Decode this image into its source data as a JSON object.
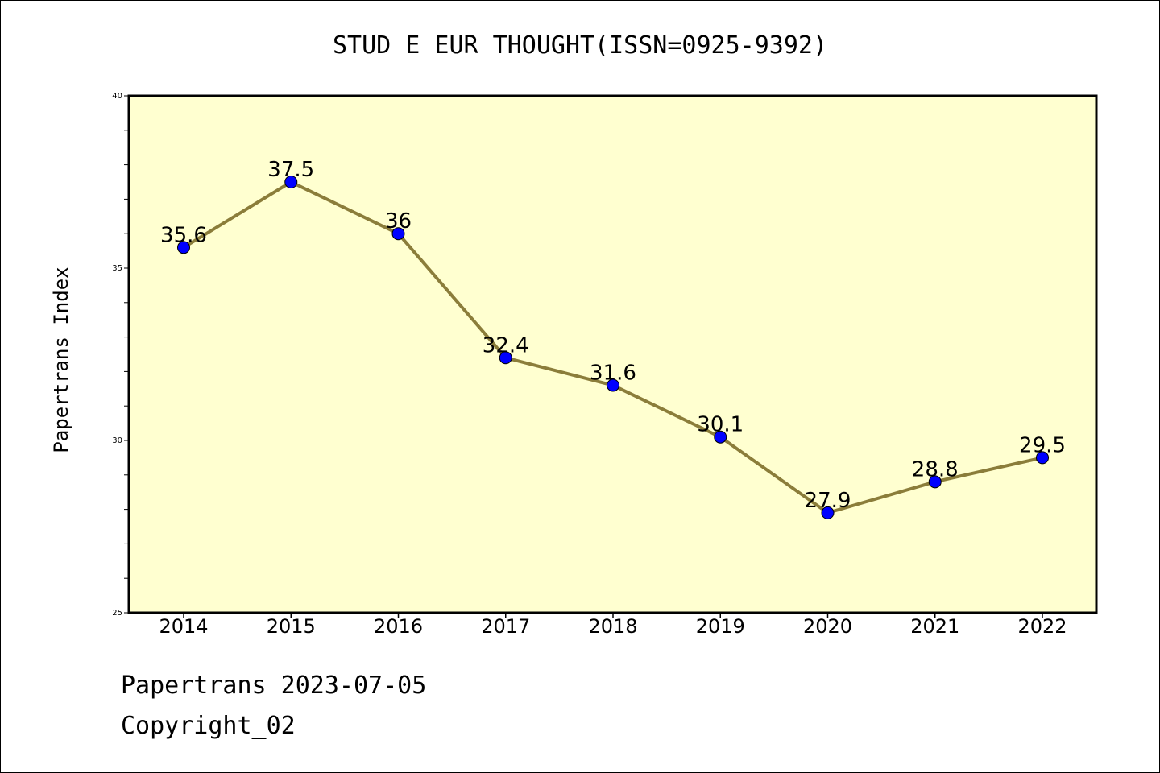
{
  "chart_data": {
    "type": "line",
    "title": "STUD E EUR THOUGHT(ISSN=0925-9392)",
    "xlabel": "",
    "ylabel": "Papertrans Index",
    "categories": [
      "2014",
      "2015",
      "2016",
      "2017",
      "2018",
      "2019",
      "2020",
      "2021",
      "2022"
    ],
    "series": [
      {
        "values": [
          35.6,
          37.5,
          36,
          32.4,
          31.6,
          30.1,
          27.9,
          28.8,
          29.5
        ]
      }
    ],
    "data_labels": [
      "35.6",
      "37.5",
      "36",
      "32.4",
      "31.6",
      "30.1",
      "27.9",
      "28.8",
      "29.5"
    ],
    "ylim": [
      25,
      40
    ],
    "yticks": [
      "25",
      "30",
      "35",
      "40"
    ],
    "grid": false,
    "legend": "none",
    "colors": {
      "plot_background": "#ffffd0",
      "line": "#8b7d3a",
      "marker": "#0000ff"
    }
  },
  "footer": {
    "line1": "Papertrans 2023-07-05",
    "line2": "Copyright_02"
  }
}
